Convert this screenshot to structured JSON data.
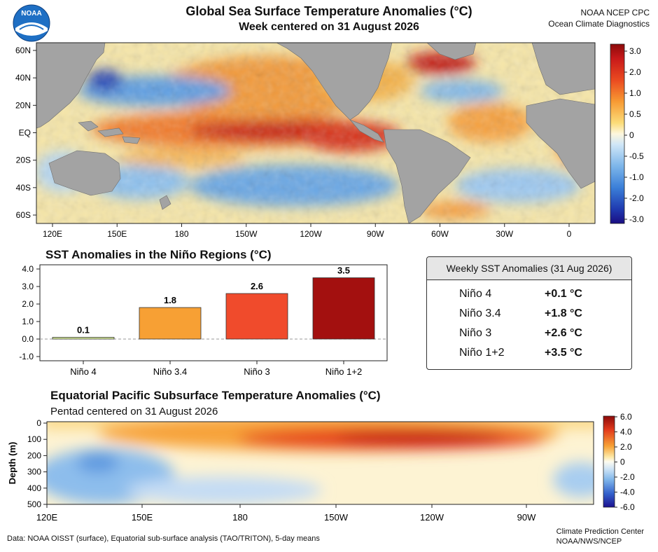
{
  "header": {
    "title": "Global Sea Surface Temperature Anomalies (°C)",
    "subtitle": "Week centered on 31 August 2026",
    "credit_line1": "NOAA NCEP CPC",
    "credit_line2": "Ocean Climate Diagnostics",
    "logo_text": "NOAA"
  },
  "colors": {
    "land": "#a3a3a3",
    "ocean_neutral": "#f6f2d6",
    "bar_nino4": "#d8ec9a",
    "bar_nino34": "#f7a034",
    "bar_nino3": "#f04b2c",
    "bar_nino12": "#a3100f"
  },
  "chart_data": [
    {
      "type": "heatmap",
      "title": "Global Sea Surface Temperature Anomalies (°C)",
      "subtitle": "Week centered on 31 August 2026",
      "x_ticks": [
        "120E",
        "150E",
        "180",
        "150W",
        "120W",
        "90W",
        "60W",
        "30W",
        "0"
      ],
      "y_ticks": [
        "60N",
        "40N",
        "20N",
        "EQ",
        "20S",
        "40S",
        "60S"
      ],
      "colorbar_ticks": [
        "3.0",
        "2.0",
        "1.0",
        "0.5",
        "0",
        "-0.5",
        "-1.0",
        "-2.0",
        "-3.0"
      ],
      "colorbar_range": [
        -3.0,
        3.0
      ],
      "features": [
        {
          "region": "Equatorial Pacific 180 to 90W",
          "anomaly": 3.0
        },
        {
          "region": "Northeast Pacific 20N-40N",
          "anomaly": 1.5
        },
        {
          "region": "Northwest Pacific 30N-45N",
          "anomaly": -1.5
        },
        {
          "region": "South Pacific 30S-45S",
          "anomaly": -1.5
        },
        {
          "region": "North Atlantic 50N-60N",
          "anomaly": 2.5
        },
        {
          "region": "Tropical North Atlantic",
          "anomaly": 1.0
        }
      ]
    },
    {
      "type": "bar",
      "title": "SST Anomalies in the Niño Regions (°C)",
      "categories": [
        "Niño 4",
        "Niño 3.4",
        "Niño 3",
        "Niño 1+2"
      ],
      "values": [
        0.1,
        1.8,
        2.6,
        3.5
      ],
      "value_labels": [
        "0.1",
        "1.8",
        "2.6",
        "3.5"
      ],
      "y_ticks": [
        "4.0",
        "3.0",
        "2.0",
        "1.0",
        "0.0",
        "-1.0"
      ],
      "ylim": [
        -1.0,
        4.0
      ],
      "zero_line": "dashed"
    },
    {
      "type": "table",
      "title": "Weekly SST Anomalies (31 Aug 2026)",
      "rows": [
        {
          "label": "Niño 4",
          "value": "+0.1 °C"
        },
        {
          "label": "Niño 3.4",
          "value": "+1.8 °C"
        },
        {
          "label": "Niño 3",
          "value": "+2.6 °C"
        },
        {
          "label": "Niño 1+2",
          "value": "+3.5 °C"
        }
      ]
    },
    {
      "type": "heatmap",
      "title": "Equatorial Pacific Subsurface Temperature Anomalies (°C)",
      "subtitle": "Pentad centered on 31 August 2026",
      "ylabel": "Depth (m)",
      "x_ticks": [
        "120E",
        "150E",
        "180",
        "150W",
        "120W",
        "90W"
      ],
      "y_ticks": [
        "0",
        "100",
        "200",
        "300",
        "400",
        "500"
      ],
      "colorbar_ticks": [
        "6.0",
        "4.0",
        "2.0",
        "0",
        "-2.0",
        "-4.0",
        "-6.0"
      ],
      "colorbar_range": [
        -6.0,
        6.0
      ],
      "features": [
        {
          "region": "Thermocline core 160W-100W, 50-150 m",
          "anomaly": 5.0
        },
        {
          "region": "Western warm pool 120E-150E, 200-500 m",
          "anomaly": -2.0
        }
      ]
    }
  ],
  "footer": {
    "data_source": "Data: NOAA OISST (surface),  Equatorial sub-surface analysis (TAO/TRITON),  5-day means",
    "credit_line1": "Climate Prediction Center",
    "credit_line2": "NOAA/NWS/NCEP"
  }
}
